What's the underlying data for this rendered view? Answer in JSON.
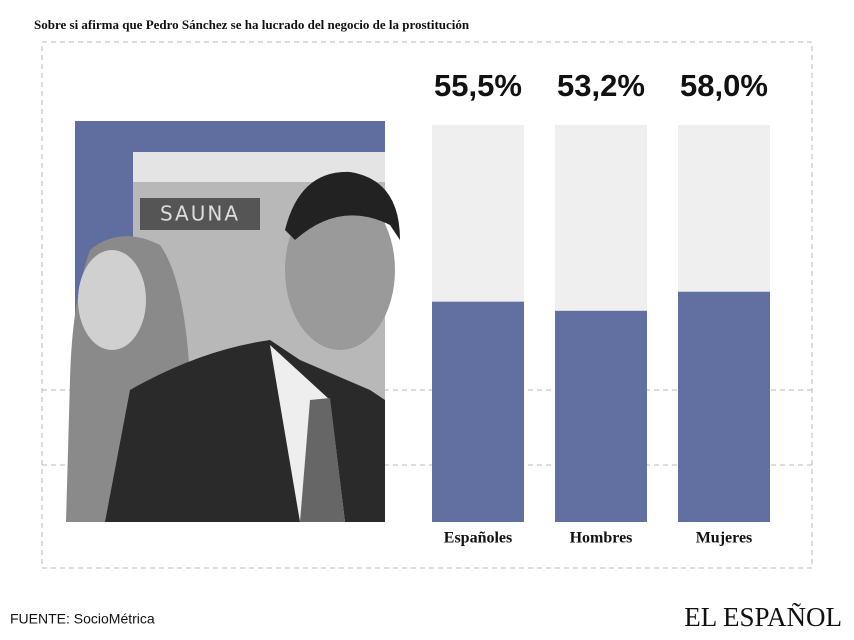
{
  "chart_data": {
    "type": "bar",
    "title": "Sobre si afirma que Pedro Sánchez se ha lucrado del negocio de la prostitución",
    "categories": [
      "Españoles",
      "Hombres",
      "Mujeres"
    ],
    "values": [
      55.5,
      53.2,
      58.0
    ],
    "value_labels": [
      "55,5%",
      "53,2%",
      "58,0%"
    ],
    "color": "#6170a1",
    "track_color": "#efefef",
    "ylim": [
      0,
      100
    ]
  },
  "photo": {
    "sign": "SAUNA"
  },
  "footer": {
    "source": "FUENTE: SocioMétrica",
    "logo": "EL ESPAÑOL"
  }
}
